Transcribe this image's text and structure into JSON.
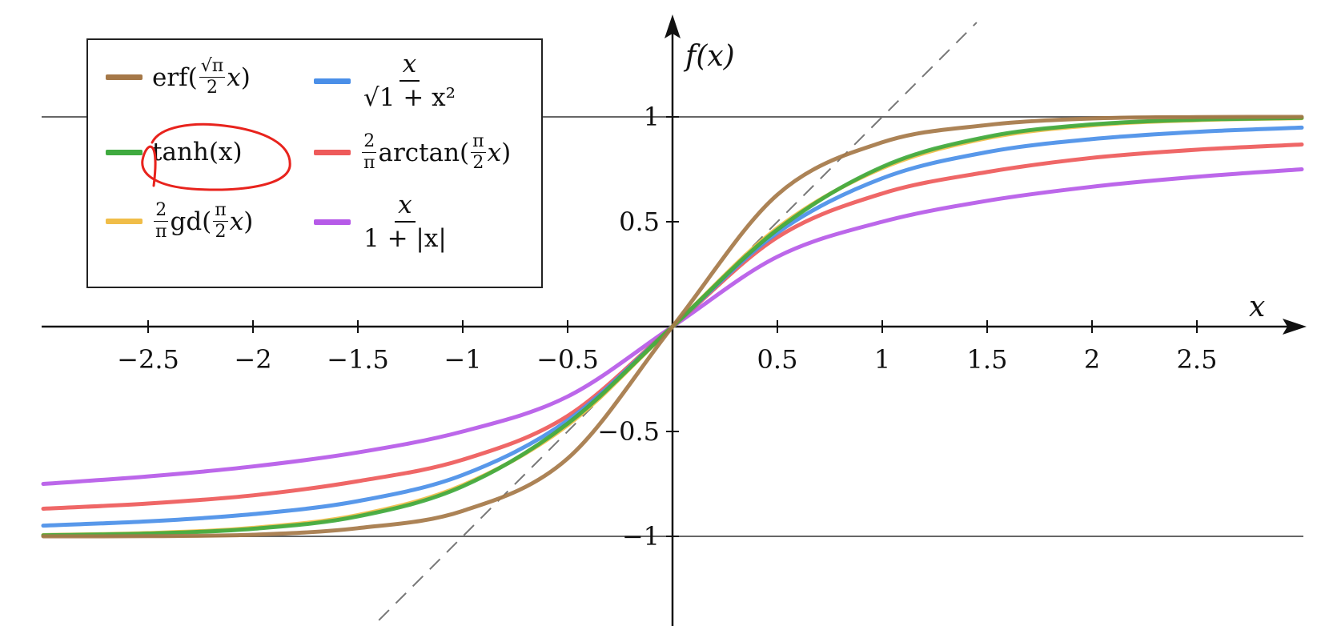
{
  "chart_data": {
    "type": "line",
    "title": "",
    "xlabel": "x",
    "ylabel": "f(x)",
    "xlim": [
      -3.0,
      3.0
    ],
    "ylim": [
      -1.4,
      1.45
    ],
    "x_ticks": [
      -2.5,
      -2,
      -1.5,
      -1,
      -0.5,
      0.5,
      1,
      1.5,
      2,
      2.5
    ],
    "x_tick_labels": [
      "−2.5",
      "−2",
      "−1.5",
      "−1",
      "−0.5",
      "0.5",
      "1",
      "1.5",
      "2",
      "2.5"
    ],
    "y_ticks": [
      1,
      0.5,
      -0.5,
      -1
    ],
    "y_tick_labels": [
      "1",
      "0.5",
      "−0.5",
      "−1"
    ],
    "reference_lines": [
      {
        "type": "horizontal",
        "y": 1,
        "color": "#666666"
      },
      {
        "type": "horizontal",
        "y": -1,
        "color": "#666666"
      },
      {
        "type": "diagonal",
        "slope": 1,
        "dashed": true,
        "color": "#777777"
      }
    ],
    "grid": false,
    "legend_position": "top-left",
    "x": [
      -3,
      -2.5,
      -2,
      -1.5,
      -1,
      -0.5,
      0,
      0.5,
      1,
      1.5,
      2,
      2.5,
      3
    ],
    "series": [
      {
        "name": "erf(√π/2 x)",
        "key": "erf",
        "color": "#a57848",
        "values": [
          -0.9999,
          -0.9991,
          -0.9923,
          -0.9611,
          -0.8787,
          -0.6289,
          0,
          0.6289,
          0.8787,
          0.9611,
          0.9923,
          0.9991,
          0.9999
        ]
      },
      {
        "name": "tanh(x)",
        "key": "tanh",
        "color": "#3faa3f",
        "values": [
          -0.9951,
          -0.9866,
          -0.964,
          -0.9051,
          -0.7616,
          -0.4621,
          0,
          0.4621,
          0.7616,
          0.9051,
          0.964,
          0.9866,
          0.9951
        ]
      },
      {
        "name": "2/π gd(π/2 x)",
        "key": "gd",
        "color": "#f0bd48",
        "values": [
          -0.994,
          -0.9844,
          -0.9597,
          -0.8986,
          -0.7559,
          -0.4699,
          0,
          0.4699,
          0.7559,
          0.8986,
          0.9597,
          0.9844,
          0.994
        ]
      },
      {
        "name": "x/√(1+x²)",
        "key": "alg",
        "color": "#4a8fe8",
        "values": [
          -0.9487,
          -0.9285,
          -0.8944,
          -0.8321,
          -0.7071,
          -0.4472,
          0,
          0.4472,
          0.7071,
          0.8321,
          0.8944,
          0.9285,
          0.9487
        ]
      },
      {
        "name": "2/π arctan(π/2 x)",
        "key": "atan",
        "color": "#ee5a5a",
        "values": [
          -0.8682,
          -0.8436,
          -0.8045,
          -0.7369,
          -0.6347,
          -0.426,
          0,
          0.426,
          0.6347,
          0.7369,
          0.8045,
          0.8436,
          0.8682
        ]
      },
      {
        "name": "x/(1+|x|)",
        "key": "abs",
        "color": "#b65ae8",
        "values": [
          -0.75,
          -0.7143,
          -0.6667,
          -0.6,
          -0.5,
          -0.3333,
          0,
          0.3333,
          0.5,
          0.6,
          0.6667,
          0.7143,
          0.75
        ]
      }
    ]
  },
  "legend": {
    "erf": {
      "fn": "erf",
      "open": " (",
      "num": "√π",
      "den": "2",
      "var": "x",
      "close": ")"
    },
    "tanh": {
      "fn": "tanh",
      "arg": " (x)"
    },
    "gd": {
      "coef_num": "2",
      "coef_den": "π",
      "fn": "gd",
      "open": " (",
      "num": "π",
      "den": "2",
      "var": "x",
      "close": ")"
    },
    "alg": {
      "num": "x",
      "den": "√1 + x²"
    },
    "atan": {
      "coef_num": "2",
      "coef_den": "π",
      "fn": "arctan",
      "open": " (",
      "num": "π",
      "den": "2",
      "var": "x",
      "close": ")"
    },
    "abs": {
      "num": "x",
      "den": "1 + |x|"
    }
  },
  "annotation": {
    "color": "#e8231d",
    "target": "tanh(x)"
  }
}
